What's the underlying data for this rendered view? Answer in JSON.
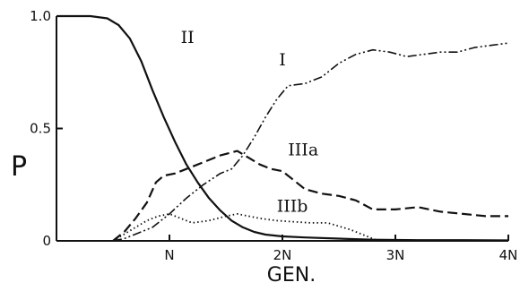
{
  "chart_data": {
    "type": "line",
    "xlabel": "GEN.",
    "ylabel": "P",
    "xlim": [
      0,
      4
    ],
    "ylim": [
      0,
      1
    ],
    "x_ticks": [
      {
        "value": 1,
        "label": "N"
      },
      {
        "value": 2,
        "label": "2N"
      },
      {
        "value": 3,
        "label": "3N"
      },
      {
        "value": 4,
        "label": "4N"
      }
    ],
    "y_ticks": [
      {
        "value": 0,
        "label": "0"
      },
      {
        "value": 0.5,
        "label": "0.5"
      },
      {
        "value": 1,
        "label": "1.0"
      }
    ],
    "grid": false,
    "series": [
      {
        "name": "II",
        "style": "solid",
        "points": [
          [
            0,
            1.0
          ],
          [
            0.3,
            1.0
          ],
          [
            0.45,
            0.99
          ],
          [
            0.55,
            0.96
          ],
          [
            0.65,
            0.9
          ],
          [
            0.75,
            0.8
          ],
          [
            0.85,
            0.67
          ],
          [
            0.95,
            0.55
          ],
          [
            1.05,
            0.44
          ],
          [
            1.15,
            0.34
          ],
          [
            1.25,
            0.26
          ],
          [
            1.35,
            0.19
          ],
          [
            1.45,
            0.135
          ],
          [
            1.55,
            0.09
          ],
          [
            1.65,
            0.06
          ],
          [
            1.75,
            0.04
          ],
          [
            1.85,
            0.028
          ],
          [
            2.0,
            0.02
          ],
          [
            2.2,
            0.015
          ],
          [
            2.5,
            0.01
          ],
          [
            2.8,
            0.005
          ],
          [
            3.2,
            0.003
          ],
          [
            3.6,
            0.003
          ],
          [
            4.0,
            0.002
          ]
        ]
      },
      {
        "name": "I",
        "style": "dash-dot-dot",
        "points": [
          [
            0.5,
            0.0
          ],
          [
            0.6,
            0.01
          ],
          [
            0.7,
            0.03
          ],
          [
            0.85,
            0.06
          ],
          [
            1.0,
            0.12
          ],
          [
            1.15,
            0.19
          ],
          [
            1.3,
            0.25
          ],
          [
            1.45,
            0.3
          ],
          [
            1.55,
            0.32
          ],
          [
            1.65,
            0.38
          ],
          [
            1.75,
            0.46
          ],
          [
            1.85,
            0.55
          ],
          [
            1.95,
            0.63
          ],
          [
            2.05,
            0.69
          ],
          [
            2.2,
            0.7
          ],
          [
            2.35,
            0.73
          ],
          [
            2.5,
            0.79
          ],
          [
            2.65,
            0.83
          ],
          [
            2.8,
            0.85
          ],
          [
            2.95,
            0.84
          ],
          [
            3.1,
            0.82
          ],
          [
            3.25,
            0.83
          ],
          [
            3.4,
            0.84
          ],
          [
            3.55,
            0.84
          ],
          [
            3.7,
            0.86
          ],
          [
            3.85,
            0.87
          ],
          [
            4.0,
            0.88
          ]
        ]
      },
      {
        "name": "IIIa",
        "style": "dashed",
        "points": [
          [
            0.5,
            0.0
          ],
          [
            0.6,
            0.04
          ],
          [
            0.7,
            0.1
          ],
          [
            0.8,
            0.17
          ],
          [
            0.88,
            0.26
          ],
          [
            0.95,
            0.29
          ],
          [
            1.05,
            0.3
          ],
          [
            1.15,
            0.32
          ],
          [
            1.3,
            0.35
          ],
          [
            1.45,
            0.38
          ],
          [
            1.6,
            0.4
          ],
          [
            1.7,
            0.37
          ],
          [
            1.8,
            0.34
          ],
          [
            1.9,
            0.32
          ],
          [
            2.0,
            0.31
          ],
          [
            2.1,
            0.27
          ],
          [
            2.2,
            0.23
          ],
          [
            2.35,
            0.21
          ],
          [
            2.5,
            0.2
          ],
          [
            2.65,
            0.18
          ],
          [
            2.8,
            0.14
          ],
          [
            3.0,
            0.14
          ],
          [
            3.2,
            0.15
          ],
          [
            3.4,
            0.13
          ],
          [
            3.6,
            0.12
          ],
          [
            3.8,
            0.11
          ],
          [
            4.0,
            0.11
          ]
        ]
      },
      {
        "name": "IIIb",
        "style": "dotted",
        "points": [
          [
            0.5,
            0.0
          ],
          [
            0.6,
            0.03
          ],
          [
            0.7,
            0.06
          ],
          [
            0.8,
            0.09
          ],
          [
            0.9,
            0.11
          ],
          [
            1.0,
            0.12
          ],
          [
            1.1,
            0.1
          ],
          [
            1.2,
            0.08
          ],
          [
            1.35,
            0.09
          ],
          [
            1.5,
            0.11
          ],
          [
            1.6,
            0.12
          ],
          [
            1.7,
            0.11
          ],
          [
            1.8,
            0.1
          ],
          [
            1.95,
            0.09
          ],
          [
            2.1,
            0.085
          ],
          [
            2.25,
            0.08
          ],
          [
            2.4,
            0.08
          ],
          [
            2.6,
            0.05
          ],
          [
            2.75,
            0.02
          ],
          [
            2.85,
            0.0
          ],
          [
            3.0,
            0.0
          ],
          [
            3.5,
            0.0
          ],
          [
            4.0,
            0.0
          ]
        ]
      }
    ],
    "annotations": [
      {
        "text": "II",
        "series": "II",
        "x": 1.1,
        "y": 0.88
      },
      {
        "text": "I",
        "series": "I",
        "x": 1.97,
        "y": 0.78
      },
      {
        "text": "IIIa",
        "series": "IIIa",
        "x": 2.05,
        "y": 0.38
      },
      {
        "text": "IIIb",
        "series": "IIIb",
        "x": 1.95,
        "y": 0.13
      }
    ]
  }
}
